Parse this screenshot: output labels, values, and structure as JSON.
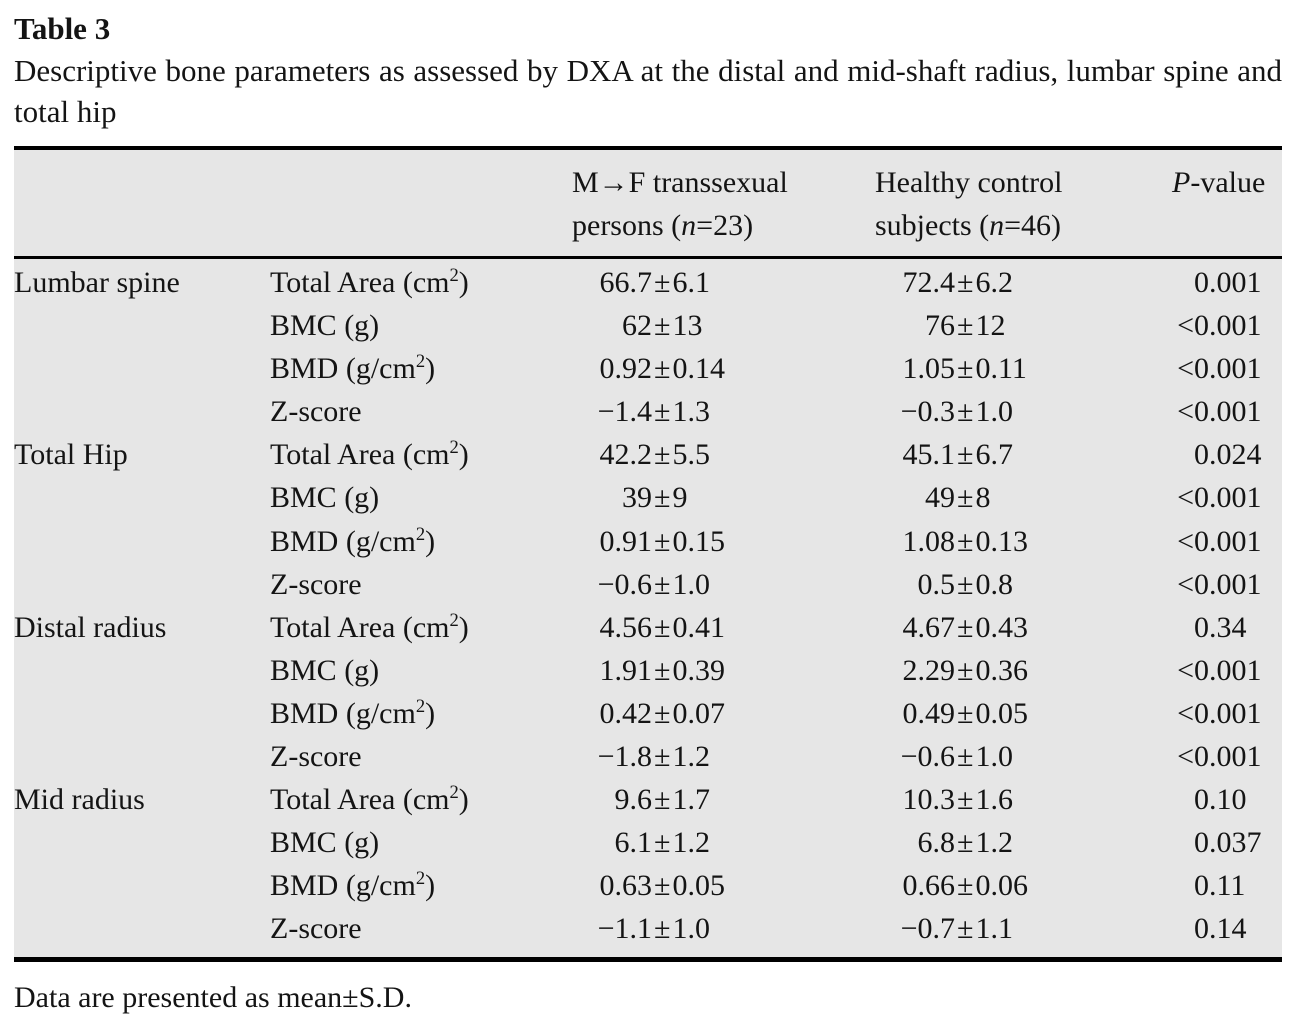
{
  "page": {
    "title": "Table 3",
    "caption": "Descriptive bone parameters as assessed by DXA at the distal and mid-shaft radius, lumbar spine and total hip",
    "footnote": "Data are presented as mean±S.D."
  },
  "colors": {
    "table_background": "#e6e6e6",
    "rule": "#000000",
    "text": "#141414"
  },
  "table": {
    "columns": {
      "mf": {
        "line1": "M→F transsexual",
        "line2_parts": [
          {
            "text": "persons ("
          },
          {
            "text": "n",
            "italic": true
          },
          {
            "text": "=23)"
          }
        ]
      },
      "control": {
        "line1": "Healthy control",
        "line2_parts": [
          {
            "text": "subjects ("
          },
          {
            "text": "n",
            "italic": true
          },
          {
            "text": "=46)"
          }
        ]
      },
      "p": {
        "parts": [
          {
            "text": "P",
            "italic": true
          },
          {
            "text": "-value"
          }
        ]
      }
    },
    "rows": [
      {
        "site": "Lumbar spine",
        "param": {
          "pre": "Total Area (cm",
          "sup": "2",
          "post": ")"
        },
        "mf": "66.7±6.1",
        "control": "72.4±6.2",
        "p": "0.001"
      },
      {
        "site": "",
        "param": {
          "pre": "BMC (g)"
        },
        "mf": "62±13",
        "control": "76±12",
        "p": "<0.001"
      },
      {
        "site": "",
        "param": {
          "pre": "BMD (g/cm",
          "sup": "2",
          "post": ")"
        },
        "mf": "0.92±0.14",
        "control": "1.05±0.11",
        "p": "<0.001"
      },
      {
        "site": "",
        "param": {
          "pre": "Z-score"
        },
        "mf": "−1.4±1.3",
        "control": "−0.3±1.0",
        "p": "<0.001"
      },
      {
        "site": "Total Hip",
        "param": {
          "pre": "Total Area (cm",
          "sup": "2",
          "post": ")"
        },
        "mf": "42.2±5.5",
        "control": "45.1±6.7",
        "p": "0.024"
      },
      {
        "site": "",
        "param": {
          "pre": "BMC (g)"
        },
        "mf": "39±9",
        "control": "49±8",
        "p": "<0.001"
      },
      {
        "site": "",
        "param": {
          "pre": "BMD (g/cm",
          "sup": "2",
          "post": ")"
        },
        "mf": "0.91±0.15",
        "control": "1.08±0.13",
        "p": "<0.001"
      },
      {
        "site": "",
        "param": {
          "pre": "Z-score"
        },
        "mf": "−0.6±1.0",
        "control": "0.5±0.8",
        "p": "<0.001"
      },
      {
        "site": "Distal radius",
        "param": {
          "pre": "Total Area (cm",
          "sup": "2",
          "post": ")"
        },
        "mf": "4.56±0.41",
        "control": "4.67±0.43",
        "p": "0.34"
      },
      {
        "site": "",
        "param": {
          "pre": "BMC (g)"
        },
        "mf": "1.91±0.39",
        "control": "2.29±0.36",
        "p": "<0.001"
      },
      {
        "site": "",
        "param": {
          "pre": "BMD (g/cm",
          "sup": "2",
          "post": ")"
        },
        "mf": "0.42±0.07",
        "control": "0.49±0.05",
        "p": "<0.001"
      },
      {
        "site": "",
        "param": {
          "pre": "Z-score"
        },
        "mf": "−1.8±1.2",
        "control": "−0.6±1.0",
        "p": "<0.001"
      },
      {
        "site": "Mid radius",
        "param": {
          "pre": "Total Area (cm",
          "sup": "2",
          "post": ")"
        },
        "mf": "9.6±1.7",
        "control": "10.3±1.6",
        "p": "0.10"
      },
      {
        "site": "",
        "param": {
          "pre": "BMC (g)"
        },
        "mf": "6.1±1.2",
        "control": "6.8±1.2",
        "p": "0.037"
      },
      {
        "site": "",
        "param": {
          "pre": "BMD (g/cm",
          "sup": "2",
          "post": ")"
        },
        "mf": "0.63±0.05",
        "control": "0.66±0.06",
        "p": "0.11"
      },
      {
        "site": "",
        "param": {
          "pre": "Z-score"
        },
        "mf": "−1.1±1.0",
        "control": "−0.7±1.1",
        "p": "0.14"
      }
    ]
  }
}
